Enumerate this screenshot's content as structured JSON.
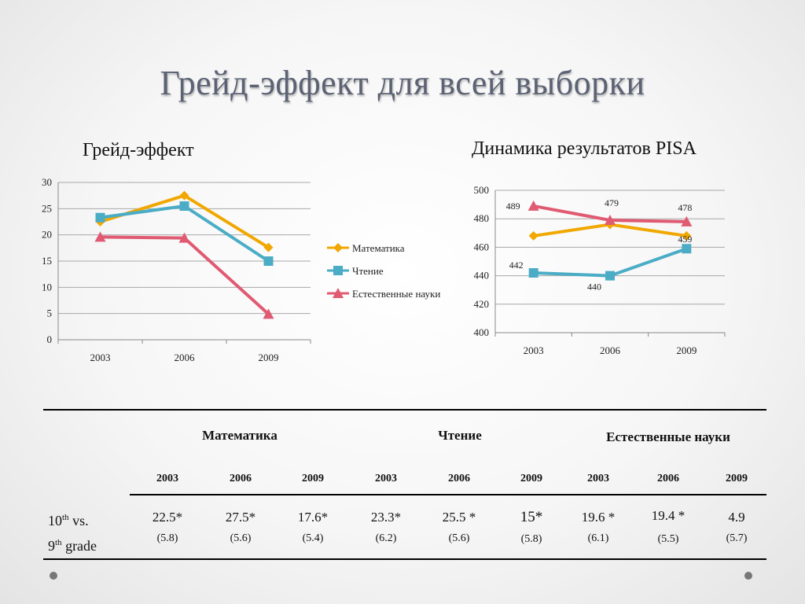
{
  "slide": {
    "title": "Грейд-эффект для всей выборки"
  },
  "chart_data": [
    {
      "type": "line",
      "title": "Грейд-эффект",
      "categories": [
        "2003",
        "2006",
        "2009"
      ],
      "ylim": [
        0,
        30
      ],
      "yticks": [
        0,
        5,
        10,
        15,
        20,
        25,
        30
      ],
      "grid": true,
      "legend": "right",
      "series": [
        {
          "name": "Математика",
          "color": "#f0a800",
          "marker": "diamond",
          "values": [
            22.5,
            27.5,
            17.6
          ]
        },
        {
          "name": "Чтение",
          "color": "#4bacc6",
          "marker": "square",
          "values": [
            23.3,
            25.5,
            15
          ]
        },
        {
          "name": "Естественные науки",
          "color": "#e05a72",
          "marker": "triangle",
          "values": [
            19.6,
            19.4,
            4.9
          ]
        }
      ]
    },
    {
      "type": "line",
      "title": "Динамика результатов PISA",
      "categories": [
        "2003",
        "2006",
        "2009"
      ],
      "ylim": [
        400,
        500
      ],
      "yticks": [
        400,
        420,
        440,
        460,
        480,
        500
      ],
      "grid": true,
      "series": [
        {
          "color": "#f0a800",
          "marker": "diamond",
          "values": [
            468,
            476,
            468
          ],
          "labels": [
            "",
            "",
            ""
          ]
        },
        {
          "color": "#4bacc6",
          "marker": "square",
          "values": [
            442,
            440,
            459
          ],
          "labels": [
            "442",
            "440",
            "459"
          ]
        },
        {
          "color": "#e05a72",
          "marker": "triangle",
          "values": [
            489,
            479,
            478
          ],
          "labels": [
            "489",
            "479",
            "478"
          ]
        }
      ]
    }
  ],
  "table": {
    "subjects": [
      "Математика",
      "Чтение",
      "Естественные науки"
    ],
    "years": [
      "2003",
      "2006",
      "2009",
      "2003",
      "2006",
      "2009",
      "2003",
      "2006",
      "2009"
    ],
    "row_label": {
      "line1_num": "10",
      "line1_sup": "th",
      "line1_rest": " vs.",
      "line2_num": "9",
      "line2_sup": "th",
      "line2_rest": " grade"
    },
    "values": [
      "22.5*",
      "27.5*",
      "17.6*",
      "23.3*",
      "25.5 *",
      "15*",
      "19.6 *",
      "19.4 *",
      "4.9"
    ],
    "se": [
      "(5.8)",
      "(5.6)",
      "(5.4)",
      "(6.2)",
      "(5.6)",
      "(5.8)",
      "(6.1)",
      "(5.5)",
      "(5.7)"
    ]
  }
}
